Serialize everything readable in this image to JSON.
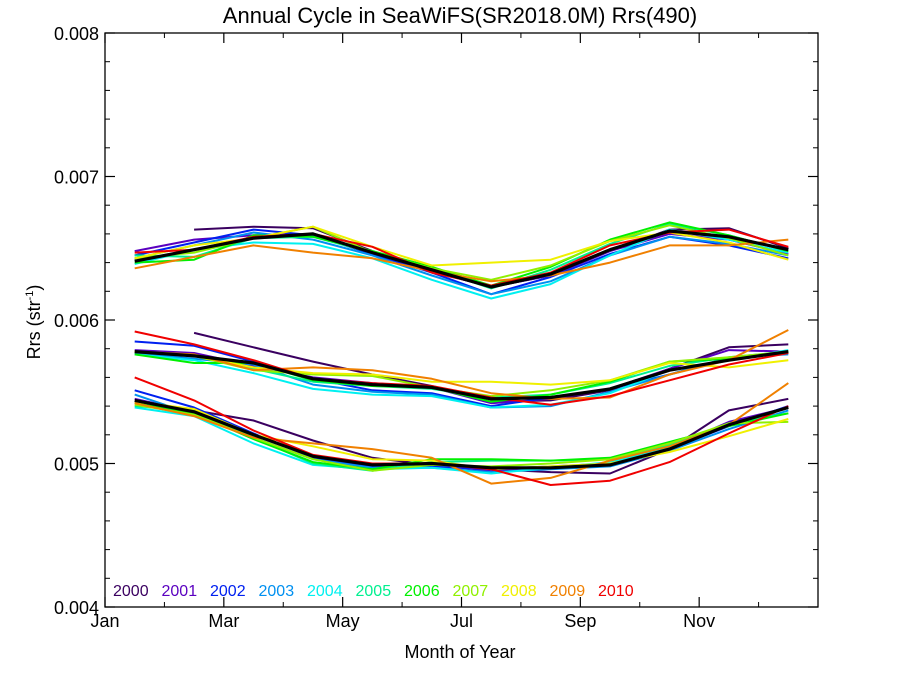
{
  "chart_data": {
    "type": "line",
    "title": "Annual Cycle in SeaWiFS(SR2018.0M) Rrs(490)",
    "xlabel": "Month of Year",
    "ylabel_main": "Rrs (str",
    "ylabel_sup": "-1",
    "ylabel_close": ")",
    "xlim": [
      1,
      13
    ],
    "ylim": [
      0.004,
      0.008
    ],
    "x_ticks": [
      1,
      3,
      5,
      7,
      9,
      11
    ],
    "x_tick_labels": [
      "Jan",
      "Mar",
      "May",
      "Jul",
      "Sep",
      "Nov"
    ],
    "x_minor_ticks": [
      2,
      4,
      6,
      8,
      10,
      12
    ],
    "y_ticks": [
      0.004,
      0.005,
      0.006,
      0.007,
      0.008
    ],
    "y_tick_labels": [
      "0.004",
      "0.005",
      "0.006",
      "0.007",
      "0.008"
    ],
    "y_minor_step": 0.0002,
    "grid": false,
    "legend_placement": "bottom-left",
    "x": [
      1.5,
      2.5,
      3.5,
      4.5,
      5.5,
      6.5,
      7.5,
      8.5,
      9.5,
      10.5,
      11.5,
      12.5
    ],
    "series": [
      {
        "name": "2000",
        "color": "#3a0060",
        "groups": [
          [
            null,
            0.00663,
            0.00665,
            0.00664,
            0.00648,
            0.00634,
            0.00623,
            0.00631,
            0.00648,
            0.00663,
            0.00664,
            0.0065
          ],
          [
            null,
            0.00591,
            0.00581,
            0.00571,
            0.00562,
            0.00554,
            0.00543,
            0.00544,
            0.00551,
            0.00566,
            0.00581,
            0.00583
          ],
          [
            null,
            0.00537,
            0.0053,
            0.00516,
            0.00504,
            0.00499,
            0.00496,
            0.00494,
            0.00493,
            0.0051,
            0.00537,
            0.00545
          ]
        ]
      },
      {
        "name": "2001",
        "color": "#5a00c0",
        "groups": [
          [
            0.00648,
            0.00656,
            0.00659,
            0.0066,
            0.00647,
            0.00634,
            0.00623,
            0.00631,
            0.00648,
            0.0066,
            0.00656,
            0.00646
          ],
          [
            0.00579,
            0.00577,
            0.00568,
            0.0056,
            0.00556,
            0.00553,
            0.00542,
            0.00545,
            0.00552,
            0.00566,
            0.00579,
            0.00578
          ],
          [
            0.00545,
            0.00536,
            0.0052,
            0.00505,
            0.00499,
            0.00499,
            0.00495,
            0.00497,
            0.00499,
            0.00511,
            0.00529,
            0.00539
          ]
        ]
      },
      {
        "name": "2002",
        "color": "#0020f0",
        "groups": [
          [
            0.00645,
            0.00654,
            0.00663,
            0.00659,
            0.00646,
            0.00633,
            0.00618,
            0.0063,
            0.00646,
            0.00658,
            0.00652,
            0.00643
          ],
          [
            0.00585,
            0.00582,
            0.00571,
            0.00559,
            0.00551,
            0.00549,
            0.0054,
            0.00546,
            0.00552,
            0.00562,
            0.00573,
            0.00577
          ],
          [
            0.00551,
            0.00539,
            0.00521,
            0.00504,
            0.00498,
            0.00498,
            0.00496,
            0.00498,
            0.005,
            0.0051,
            0.00526,
            0.0054
          ]
        ]
      },
      {
        "name": "2003",
        "color": "#0090f0",
        "groups": [
          [
            0.00643,
            0.00652,
            0.00661,
            0.00656,
            0.00645,
            0.00631,
            0.00618,
            0.00627,
            0.00645,
            0.00658,
            0.00653,
            0.00645
          ],
          [
            0.00577,
            0.00573,
            0.00569,
            0.00555,
            0.0055,
            0.00548,
            0.00539,
            0.0054,
            0.0055,
            0.00562,
            0.00574,
            0.00576
          ],
          [
            0.00548,
            0.00534,
            0.00518,
            0.00503,
            0.00497,
            0.00497,
            0.00494,
            0.00496,
            0.00498,
            0.00509,
            0.00524,
            0.00537
          ]
        ]
      },
      {
        "name": "2004",
        "color": "#00f0f0",
        "groups": [
          [
            0.00639,
            0.00649,
            0.00654,
            0.00653,
            0.00643,
            0.00628,
            0.00615,
            0.00625,
            0.00645,
            0.00663,
            0.00656,
            0.00647
          ],
          [
            0.00576,
            0.00572,
            0.00563,
            0.00552,
            0.00548,
            0.00547,
            0.00539,
            0.00541,
            0.00549,
            0.00565,
            0.00572,
            0.00579
          ],
          [
            0.00539,
            0.00533,
            0.00514,
            0.00499,
            0.00496,
            0.00497,
            0.00493,
            0.00497,
            0.00501,
            0.00511,
            0.00527,
            0.00539
          ]
        ]
      },
      {
        "name": "2005",
        "color": "#00f090",
        "groups": [
          [
            0.00645,
            0.00644,
            0.00657,
            0.00658,
            0.00647,
            0.00636,
            0.00622,
            0.00635,
            0.00653,
            0.00667,
            0.00659,
            0.00648
          ],
          [
            0.00578,
            0.00575,
            0.00566,
            0.00557,
            0.00554,
            0.00552,
            0.00546,
            0.00548,
            0.00556,
            0.00568,
            0.00574,
            0.00578
          ],
          [
            0.0054,
            0.00537,
            0.00518,
            0.005,
            0.00495,
            0.00501,
            0.00502,
            0.00502,
            0.00503,
            0.00513,
            0.00528,
            0.00535
          ]
        ]
      },
      {
        "name": "2006",
        "color": "#00f000",
        "groups": [
          [
            0.0064,
            0.00642,
            0.00659,
            0.00658,
            0.00648,
            0.00637,
            0.00624,
            0.00637,
            0.00656,
            0.00668,
            0.00659,
            0.00648
          ],
          [
            0.00576,
            0.0057,
            0.0057,
            0.00558,
            0.00554,
            0.00553,
            0.00543,
            0.00548,
            0.00557,
            0.00571,
            0.00573,
            0.00578
          ],
          [
            0.00542,
            0.00535,
            0.00517,
            0.00501,
            0.00496,
            0.00503,
            0.00503,
            0.00502,
            0.00504,
            0.00515,
            0.00526,
            0.00535
          ]
        ]
      },
      {
        "name": "2007",
        "color": "#90f000",
        "groups": [
          [
            0.00643,
            0.00647,
            0.00657,
            0.00665,
            0.00647,
            0.00636,
            0.00628,
            0.00638,
            0.00655,
            0.00666,
            0.00657,
            0.00645
          ],
          [
            0.00578,
            0.00575,
            0.00565,
            0.00562,
            0.00561,
            0.00553,
            0.00547,
            0.00551,
            0.00558,
            0.00571,
            0.00574,
            0.00578
          ],
          [
            0.00541,
            0.00534,
            0.00518,
            0.00503,
            0.00495,
            0.00499,
            0.00498,
            0.005,
            0.00503,
            0.00514,
            0.00528,
            0.00529
          ]
        ]
      },
      {
        "name": "2008",
        "color": "#f0f000",
        "groups": [
          [
            0.00643,
            0.00652,
            0.00657,
            0.00665,
            0.00651,
            0.00638,
            0.0064,
            0.00642,
            0.00655,
            0.00661,
            0.00654,
            0.00642
          ],
          [
            0.00578,
            0.00575,
            0.00567,
            0.00563,
            0.00562,
            0.00557,
            0.00557,
            0.00555,
            0.00558,
            0.0057,
            0.00567,
            0.00572
          ],
          [
            0.00543,
            0.00538,
            0.0052,
            0.00512,
            0.00503,
            0.00502,
            0.00496,
            0.00498,
            0.005,
            0.00508,
            0.00519,
            0.00531
          ]
        ]
      },
      {
        "name": "2009",
        "color": "#f08000",
        "groups": [
          [
            0.00636,
            0.00644,
            0.00652,
            0.00647,
            0.00643,
            0.00634,
            0.00627,
            0.00631,
            0.0064,
            0.00652,
            0.00652,
            0.00656
          ],
          [
            0.00578,
            0.00576,
            0.00565,
            0.00567,
            0.00565,
            0.00559,
            0.00549,
            0.00545,
            0.00546,
            0.00562,
            0.00572,
            0.00593
          ],
          [
            0.00542,
            0.00533,
            0.00518,
            0.00514,
            0.0051,
            0.00504,
            0.00486,
            0.0049,
            0.00502,
            0.00512,
            0.00527,
            0.00556
          ]
        ]
      },
      {
        "name": "2010",
        "color": "#f00000",
        "groups": [
          [
            0.00647,
            0.00649,
            0.00658,
            0.0066,
            0.00651,
            0.00633,
            0.00624,
            0.00633,
            0.00652,
            0.00661,
            0.00663,
            0.00651
          ],
          [
            0.00592,
            0.00583,
            0.00572,
            0.00559,
            0.00556,
            0.00554,
            0.00546,
            0.00541,
            0.00547,
            0.00558,
            0.00569,
            0.00577
          ],
          [
            0.0056,
            0.00544,
            0.00523,
            0.00506,
            0.005,
            0.005,
            0.00496,
            0.00485,
            0.00488,
            0.00501,
            0.00521,
            0.0054
          ]
        ]
      }
    ],
    "mean": {
      "color": "#000000",
      "groups": [
        [
          0.00641,
          0.00649,
          0.00657,
          0.0066,
          0.00647,
          0.00635,
          0.00623,
          0.00632,
          0.00649,
          0.00662,
          0.00658,
          0.00649
        ],
        [
          0.00578,
          0.00575,
          0.0057,
          0.00559,
          0.00555,
          0.00553,
          0.00545,
          0.00546,
          0.00552,
          0.00565,
          0.00572,
          0.00578
        ],
        [
          0.00544,
          0.00536,
          0.0052,
          0.00505,
          0.00499,
          0.005,
          0.00497,
          0.00497,
          0.00499,
          0.0051,
          0.00527,
          0.00539
        ]
      ]
    }
  }
}
